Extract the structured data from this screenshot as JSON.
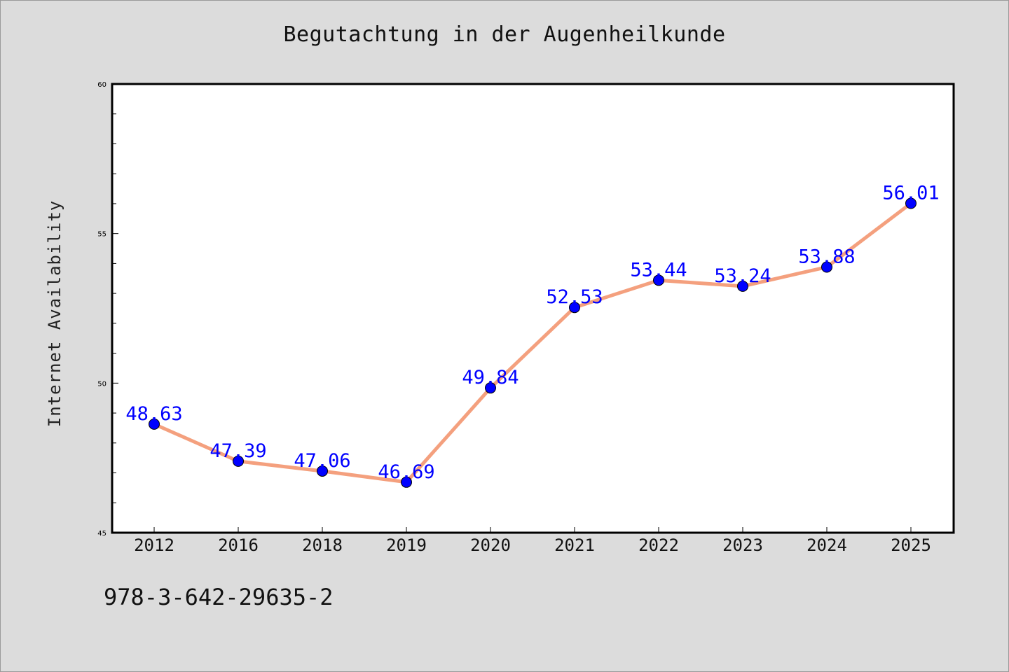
{
  "chart_data": {
    "type": "line",
    "title": "Begutachtung in der Augenheilkunde",
    "xlabel": "",
    "ylabel": "Internet Availability",
    "categories": [
      "2012",
      "2016",
      "2018",
      "2019",
      "2020",
      "2021",
      "2022",
      "2023",
      "2024",
      "2025"
    ],
    "series": [
      {
        "values": [
          48.63,
          47.39,
          47.06,
          46.69,
          49.84,
          52.53,
          53.44,
          53.24,
          53.88,
          56.01
        ],
        "labels": [
          "48.63",
          "47.39",
          "47.06",
          "46.69",
          "49.84",
          "52.53",
          "53.44",
          "53.24",
          "53.88",
          "56.01"
        ]
      }
    ],
    "ylim": [
      45,
      60
    ],
    "yticks": [
      "45",
      "50",
      "55",
      "60"
    ],
    "grid": false,
    "line_color": "#f4a07e",
    "marker_color": "#0000ff",
    "label_color": "#0000ff"
  },
  "footnote": "978-3-642-29635-2"
}
